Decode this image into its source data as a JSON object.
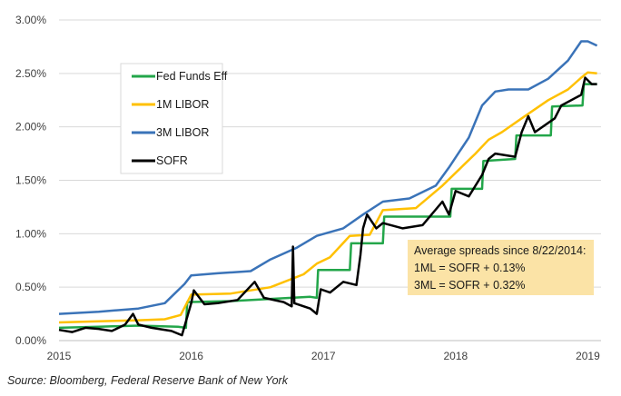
{
  "chart_data": {
    "type": "line",
    "title": "",
    "xlabel": "",
    "ylabel": "",
    "xlim": [
      2015.0,
      2019.1
    ],
    "ylim": [
      0,
      3
    ],
    "x_ticks": [
      {
        "value": 2015,
        "label": "2015"
      },
      {
        "value": 2016,
        "label": "2016"
      },
      {
        "value": 2017,
        "label": "2017"
      },
      {
        "value": 2018,
        "label": "2018"
      },
      {
        "value": 2019,
        "label": "2019"
      }
    ],
    "y_ticks": [
      {
        "value": 0,
        "label": "0.00%"
      },
      {
        "value": 0.5,
        "label": "0.50%"
      },
      {
        "value": 1.0,
        "label": "1.00%"
      },
      {
        "value": 1.5,
        "label": "1.50%"
      },
      {
        "value": 2.0,
        "label": "2.00%"
      },
      {
        "value": 2.5,
        "label": "2.50%"
      },
      {
        "value": 3.0,
        "label": "3.00%"
      }
    ],
    "grid": "horizontal",
    "legend_position": "upper-left",
    "series": [
      {
        "name": "Fed Funds Eff",
        "color": "#23a64a",
        "points": [
          [
            2015.0,
            0.12
          ],
          [
            2015.3,
            0.13
          ],
          [
            2015.6,
            0.14
          ],
          [
            2015.9,
            0.13
          ],
          [
            2015.96,
            0.12
          ],
          [
            2015.97,
            0.36
          ],
          [
            2016.3,
            0.37
          ],
          [
            2016.6,
            0.39
          ],
          [
            2016.9,
            0.41
          ],
          [
            2016.95,
            0.4
          ],
          [
            2016.96,
            0.66
          ],
          [
            2017.2,
            0.66
          ],
          [
            2017.21,
            0.91
          ],
          [
            2017.45,
            0.91
          ],
          [
            2017.46,
            1.16
          ],
          [
            2017.7,
            1.16
          ],
          [
            2017.96,
            1.16
          ],
          [
            2017.97,
            1.42
          ],
          [
            2018.2,
            1.42
          ],
          [
            2018.21,
            1.68
          ],
          [
            2018.45,
            1.7
          ],
          [
            2018.46,
            1.92
          ],
          [
            2018.72,
            1.92
          ],
          [
            2018.73,
            2.19
          ],
          [
            2018.96,
            2.2
          ],
          [
            2018.97,
            2.4
          ],
          [
            2019.07,
            2.4
          ]
        ]
      },
      {
        "name": "1M LIBOR",
        "color": "#ffc000",
        "points": [
          [
            2015.0,
            0.17
          ],
          [
            2015.3,
            0.18
          ],
          [
            2015.6,
            0.19
          ],
          [
            2015.8,
            0.2
          ],
          [
            2015.92,
            0.24
          ],
          [
            2016.0,
            0.43
          ],
          [
            2016.3,
            0.44
          ],
          [
            2016.6,
            0.5
          ],
          [
            2016.85,
            0.62
          ],
          [
            2016.95,
            0.72
          ],
          [
            2017.05,
            0.78
          ],
          [
            2017.2,
            0.98
          ],
          [
            2017.35,
            0.99
          ],
          [
            2017.45,
            1.22
          ],
          [
            2017.7,
            1.24
          ],
          [
            2017.9,
            1.45
          ],
          [
            2018.0,
            1.57
          ],
          [
            2018.15,
            1.75
          ],
          [
            2018.25,
            1.88
          ],
          [
            2018.35,
            1.95
          ],
          [
            2018.5,
            2.08
          ],
          [
            2018.7,
            2.25
          ],
          [
            2018.85,
            2.35
          ],
          [
            2018.95,
            2.46
          ],
          [
            2019.0,
            2.51
          ],
          [
            2019.07,
            2.5
          ]
        ]
      },
      {
        "name": "3M LIBOR",
        "color": "#3a73b8",
        "points": [
          [
            2015.0,
            0.25
          ],
          [
            2015.3,
            0.27
          ],
          [
            2015.6,
            0.3
          ],
          [
            2015.8,
            0.35
          ],
          [
            2015.95,
            0.53
          ],
          [
            2016.0,
            0.61
          ],
          [
            2016.2,
            0.63
          ],
          [
            2016.45,
            0.65
          ],
          [
            2016.6,
            0.76
          ],
          [
            2016.8,
            0.87
          ],
          [
            2016.95,
            0.98
          ],
          [
            2017.15,
            1.05
          ],
          [
            2017.3,
            1.18
          ],
          [
            2017.45,
            1.3
          ],
          [
            2017.65,
            1.33
          ],
          [
            2017.85,
            1.45
          ],
          [
            2017.95,
            1.62
          ],
          [
            2018.1,
            1.9
          ],
          [
            2018.2,
            2.2
          ],
          [
            2018.3,
            2.33
          ],
          [
            2018.4,
            2.35
          ],
          [
            2018.55,
            2.35
          ],
          [
            2018.7,
            2.45
          ],
          [
            2018.85,
            2.62
          ],
          [
            2018.95,
            2.8
          ],
          [
            2019.0,
            2.8
          ],
          [
            2019.07,
            2.76
          ]
        ]
      },
      {
        "name": "SOFR",
        "color": "#000000",
        "points": [
          [
            2015.0,
            0.1
          ],
          [
            2015.1,
            0.08
          ],
          [
            2015.2,
            0.12
          ],
          [
            2015.3,
            0.11
          ],
          [
            2015.4,
            0.09
          ],
          [
            2015.5,
            0.15
          ],
          [
            2015.56,
            0.25
          ],
          [
            2015.6,
            0.15
          ],
          [
            2015.7,
            0.12
          ],
          [
            2015.85,
            0.09
          ],
          [
            2015.93,
            0.05
          ],
          [
            2016.0,
            0.35
          ],
          [
            2016.02,
            0.47
          ],
          [
            2016.1,
            0.34
          ],
          [
            2016.2,
            0.35
          ],
          [
            2016.35,
            0.38
          ],
          [
            2016.48,
            0.55
          ],
          [
            2016.55,
            0.4
          ],
          [
            2016.7,
            0.36
          ],
          [
            2016.76,
            0.32
          ],
          [
            2016.77,
            0.88
          ],
          [
            2016.78,
            0.35
          ],
          [
            2016.9,
            0.3
          ],
          [
            2016.95,
            0.25
          ],
          [
            2016.98,
            0.48
          ],
          [
            2017.05,
            0.45
          ],
          [
            2017.15,
            0.55
          ],
          [
            2017.25,
            0.52
          ],
          [
            2017.28,
            0.8
          ],
          [
            2017.3,
            1.05
          ],
          [
            2017.33,
            1.18
          ],
          [
            2017.4,
            1.05
          ],
          [
            2017.45,
            1.1
          ],
          [
            2017.6,
            1.05
          ],
          [
            2017.75,
            1.08
          ],
          [
            2017.9,
            1.3
          ],
          [
            2017.95,
            1.18
          ],
          [
            2018.0,
            1.4
          ],
          [
            2018.1,
            1.35
          ],
          [
            2018.2,
            1.55
          ],
          [
            2018.25,
            1.7
          ],
          [
            2018.3,
            1.75
          ],
          [
            2018.45,
            1.72
          ],
          [
            2018.5,
            1.95
          ],
          [
            2018.55,
            2.1
          ],
          [
            2018.6,
            1.95
          ],
          [
            2018.75,
            2.08
          ],
          [
            2018.8,
            2.2
          ],
          [
            2018.95,
            2.3
          ],
          [
            2018.98,
            2.46
          ],
          [
            2019.03,
            2.4
          ],
          [
            2019.07,
            2.4
          ]
        ]
      }
    ]
  },
  "annotation": {
    "lines": [
      "Average spreads since 8/22/2014:",
      "1ML = SOFR + 0.13%",
      "3ML = SOFR + 0.32%"
    ],
    "background": "#fbe3a6"
  },
  "source": "Source:  Bloomberg, Federal Reserve Bank of New York"
}
